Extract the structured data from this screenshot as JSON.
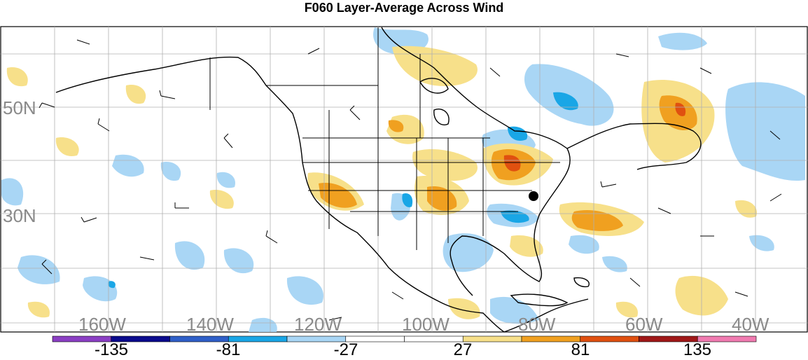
{
  "title": "F060 Layer-Average Across Wind",
  "map": {
    "region": "North America",
    "lat_labels": [
      "50N",
      "30N"
    ],
    "lon_labels": [
      "160W",
      "140W",
      "120W",
      "100W",
      "80W",
      "60W",
      "40W"
    ]
  },
  "colorbar": {
    "tick_labels": [
      "-135",
      "-81",
      "-27",
      "27",
      "81",
      "135"
    ],
    "colors": [
      "#8b3fc4",
      "#0a0a8c",
      "#2f5fc8",
      "#19a6e6",
      "#a9d6f5",
      "#ffffff",
      "#ffffff",
      "#f7e08a",
      "#f0a020",
      "#e05010",
      "#a01818",
      "#f07ab0"
    ]
  },
  "colors": {
    "light_blue": "#a9d6f5",
    "medium_blue": "#19a6e6",
    "light_yellow": "#f7e08a",
    "orange": "#f0a020",
    "red_orange": "#e05010",
    "grid": "#b0b0b0",
    "labels": "#8a8a8a"
  }
}
